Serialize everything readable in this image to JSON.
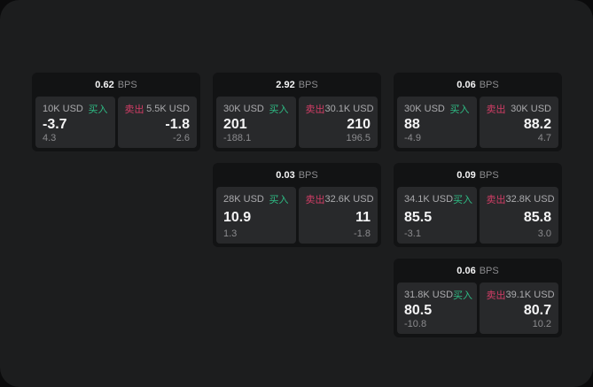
{
  "page": {
    "bps_suffix": "BPS",
    "buy_label": "买入",
    "sell_label": "卖出"
  },
  "colors": {
    "background": "#0b0b0c",
    "panel": "#1c1d1e",
    "card": "#121314",
    "cell": "#28292b",
    "buy_green": "#2ebd85",
    "sell_red": "#d23d66",
    "text_bright": "#f4f4f5",
    "text_label": "#aaaaad",
    "text_dim": "#8b8b8e"
  },
  "cards": [
    {
      "bps": "0.62",
      "buy": {
        "amount": "10K USD",
        "price": "-3.7",
        "delta": "4.3"
      },
      "sell": {
        "amount": "5.5K USD",
        "price": "-1.8",
        "delta": "-2.6"
      }
    },
    {
      "bps": "2.92",
      "buy": {
        "amount": "30K USD",
        "price": "201",
        "delta": "-188.1"
      },
      "sell": {
        "amount": "30.1K USD",
        "price": "210",
        "delta": "196.5"
      }
    },
    {
      "bps": "0.06",
      "buy": {
        "amount": "30K USD",
        "price": "88",
        "delta": "-4.9"
      },
      "sell": {
        "amount": "30K USD",
        "price": "88.2",
        "delta": "4.7"
      }
    },
    {
      "bps": "0.03",
      "buy": {
        "amount": "28K USD",
        "price": "10.9",
        "delta": "1.3"
      },
      "sell": {
        "amount": "32.6K USD",
        "price": "11",
        "delta": "-1.8"
      }
    },
    {
      "bps": "0.09",
      "buy": {
        "amount": "34.1K USD",
        "price": "85.5",
        "delta": "-3.1"
      },
      "sell": {
        "amount": "32.8K USD",
        "price": "85.8",
        "delta": "3.0"
      }
    },
    {
      "bps": "0.06",
      "buy": {
        "amount": "31.8K USD",
        "price": "80.5",
        "delta": "-10.8"
      },
      "sell": {
        "amount": "39.1K USD",
        "price": "80.7",
        "delta": "10.2"
      }
    }
  ]
}
